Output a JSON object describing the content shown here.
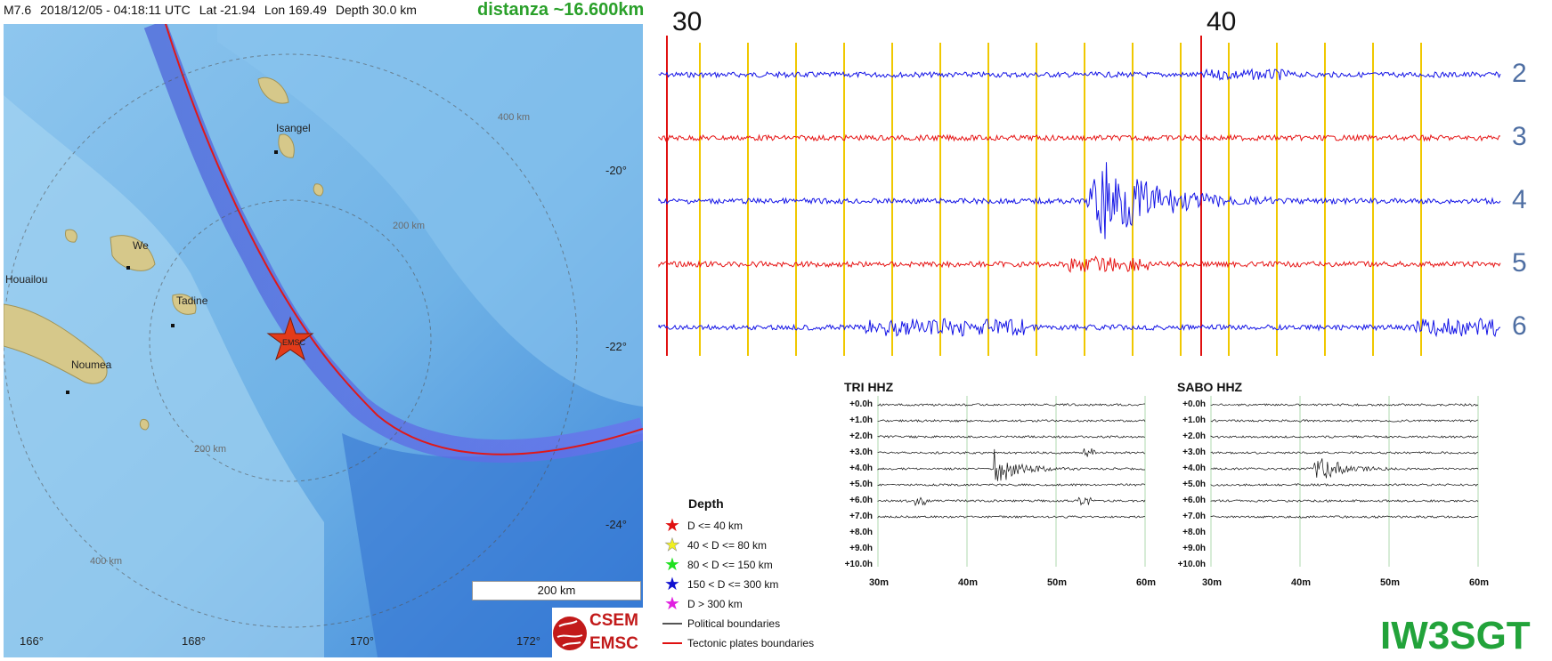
{
  "header": {
    "magnitude": "M7.6",
    "datetime": "2018/12/05 - 04:18:11 UTC",
    "lat": "Lat -21.94",
    "lon": "Lon 169.49",
    "depth": "Depth  30.0 km",
    "distance": "distanza ~16.600km"
  },
  "map": {
    "places": [
      "Isangel",
      "We",
      "Tadine",
      "Houailou",
      "Noumea"
    ],
    "epicenter_label": "EMSC",
    "radius_labels": [
      "400 km",
      "200 km",
      "200 km",
      "400 km"
    ],
    "lat_labels": [
      "-20°",
      "-22°",
      "-24°"
    ],
    "lon_labels": [
      "166°",
      "168°",
      "170°",
      "172°"
    ],
    "scale_label": "200 km",
    "logo_top": "CSEM",
    "logo_bottom": "EMSC"
  },
  "helicorder": {
    "time_labels": [
      "30",
      "40"
    ],
    "channels": [
      "2",
      "3",
      "4",
      "5",
      "6"
    ],
    "colors": [
      "#1414e6",
      "#e61414",
      "#1414e6",
      "#e61414",
      "#1414e6"
    ],
    "event_channel": "4"
  },
  "legend": {
    "title": "Depth",
    "items": [
      {
        "label": "D <= 40 km",
        "color": "#e01010",
        "icon": "star-icon"
      },
      {
        "label": "40 < D <= 80 km",
        "color": "#f0f020",
        "icon": "star-icon"
      },
      {
        "label": "80 < D <= 150 km",
        "color": "#20e020",
        "icon": "star-icon"
      },
      {
        "label": "150 < D <= 300 km",
        "color": "#1010d0",
        "icon": "star-icon"
      },
      {
        "label": "D > 300 km",
        "color": "#e020e0",
        "icon": "star-icon"
      },
      {
        "label": "Political boundaries",
        "color": "#555555",
        "icon": "line-icon"
      },
      {
        "label": "Tectonic plates boundaries",
        "color": "#e01010",
        "icon": "line-icon"
      }
    ]
  },
  "drums": [
    {
      "title": "TRI HHZ",
      "hours": [
        "+0.0h",
        "+1.0h",
        "+2.0h",
        "+3.0h",
        "+4.0h",
        "+5.0h",
        "+6.0h",
        "+7.0h",
        "+8.0h",
        "+9.0h",
        "+10.0h"
      ],
      "minutes": [
        "30m",
        "40m",
        "50m",
        "60m"
      ]
    },
    {
      "title": "SABO HHZ",
      "hours": [
        "+0.0h",
        "+1.0h",
        "+2.0h",
        "+3.0h",
        "+4.0h",
        "+5.0h",
        "+6.0h",
        "+7.0h",
        "+8.0h",
        "+9.0h",
        "+10.0h"
      ],
      "minutes": [
        "30m",
        "40m",
        "50m",
        "60m"
      ]
    }
  ],
  "callsign": "IW3SGT"
}
